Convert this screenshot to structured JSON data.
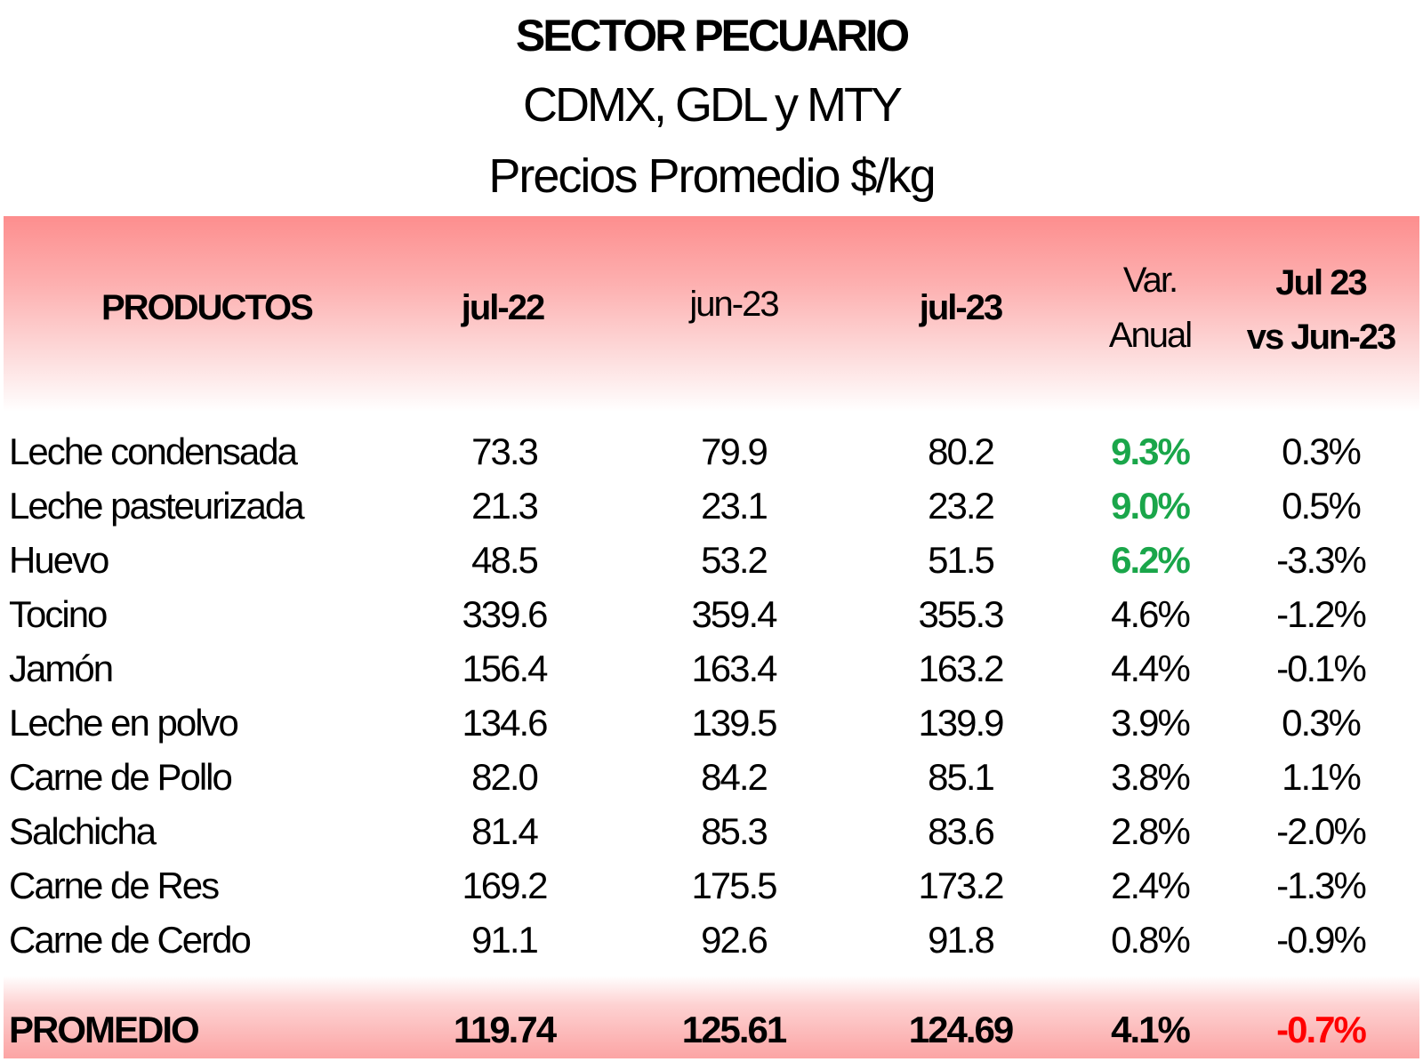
{
  "title": {
    "main": "SECTOR PECUARIO",
    "sub": "CDMX, GDL y MTY",
    "sub2": "Precios Promedio $/kg"
  },
  "header": {
    "productos": "PRODUCTOS",
    "jul22": "jul-22",
    "jun23": "jun-23",
    "jul23": "jul-23",
    "var_line1": "Var.",
    "var_line2": "Anual",
    "mom_line1": "Jul 23",
    "mom_line2": "vs Jun-23"
  },
  "rows": [
    {
      "name": "Leche condensada",
      "jul22": "73.3",
      "jun23": "79.9",
      "jul23": "80.2",
      "var": "9.3%",
      "mom": "0.3%"
    },
    {
      "name": "Leche pasteurizada",
      "jul22": "21.3",
      "jun23": "23.1",
      "jul23": "23.2",
      "var": "9.0%",
      "mom": "0.5%"
    },
    {
      "name": "Huevo",
      "jul22": "48.5",
      "jun23": "53.2",
      "jul23": "51.5",
      "var": "6.2%",
      "mom": "-3.3%"
    },
    {
      "name": "Tocino",
      "jul22": "339.6",
      "jun23": "359.4",
      "jul23": "355.3",
      "var": "4.6%",
      "mom": "-1.2%"
    },
    {
      "name": "Jamón",
      "jul22": "156.4",
      "jun23": "163.4",
      "jul23": "163.2",
      "var": "4.4%",
      "mom": "-0.1%"
    },
    {
      "name": "Leche en polvo",
      "jul22": "134.6",
      "jun23": "139.5",
      "jul23": "139.9",
      "var": "3.9%",
      "mom": "0.3%"
    },
    {
      "name": "Carne de Pollo",
      "jul22": "82.0",
      "jun23": "84.2",
      "jul23": "85.1",
      "var": "3.8%",
      "mom": "1.1%"
    },
    {
      "name": "Salchicha",
      "jul22": "81.4",
      "jun23": "85.3",
      "jul23": "83.6",
      "var": "2.8%",
      "mom": "-2.0%"
    },
    {
      "name": "Carne de Res",
      "jul22": "169.2",
      "jun23": "175.5",
      "jul23": "173.2",
      "var": "2.4%",
      "mom": "-1.3%"
    },
    {
      "name": "Carne de Cerdo",
      "jul22": "91.1",
      "jun23": "92.6",
      "jul23": "91.8",
      "var": "0.8%",
      "mom": "-0.9%"
    }
  ],
  "highlight_rows": [
    0,
    1,
    2
  ],
  "footer": {
    "name": "PROMEDIO",
    "jul22": "119.74",
    "jun23": "125.61",
    "jul23": "124.69",
    "var": "4.1%",
    "mom": "-0.7%"
  },
  "colors": {
    "header_band": "#fd8e8e",
    "footer_band": "#fca4a4",
    "highlight_green": "#1aa64a",
    "negative_red": "#ff0000"
  }
}
